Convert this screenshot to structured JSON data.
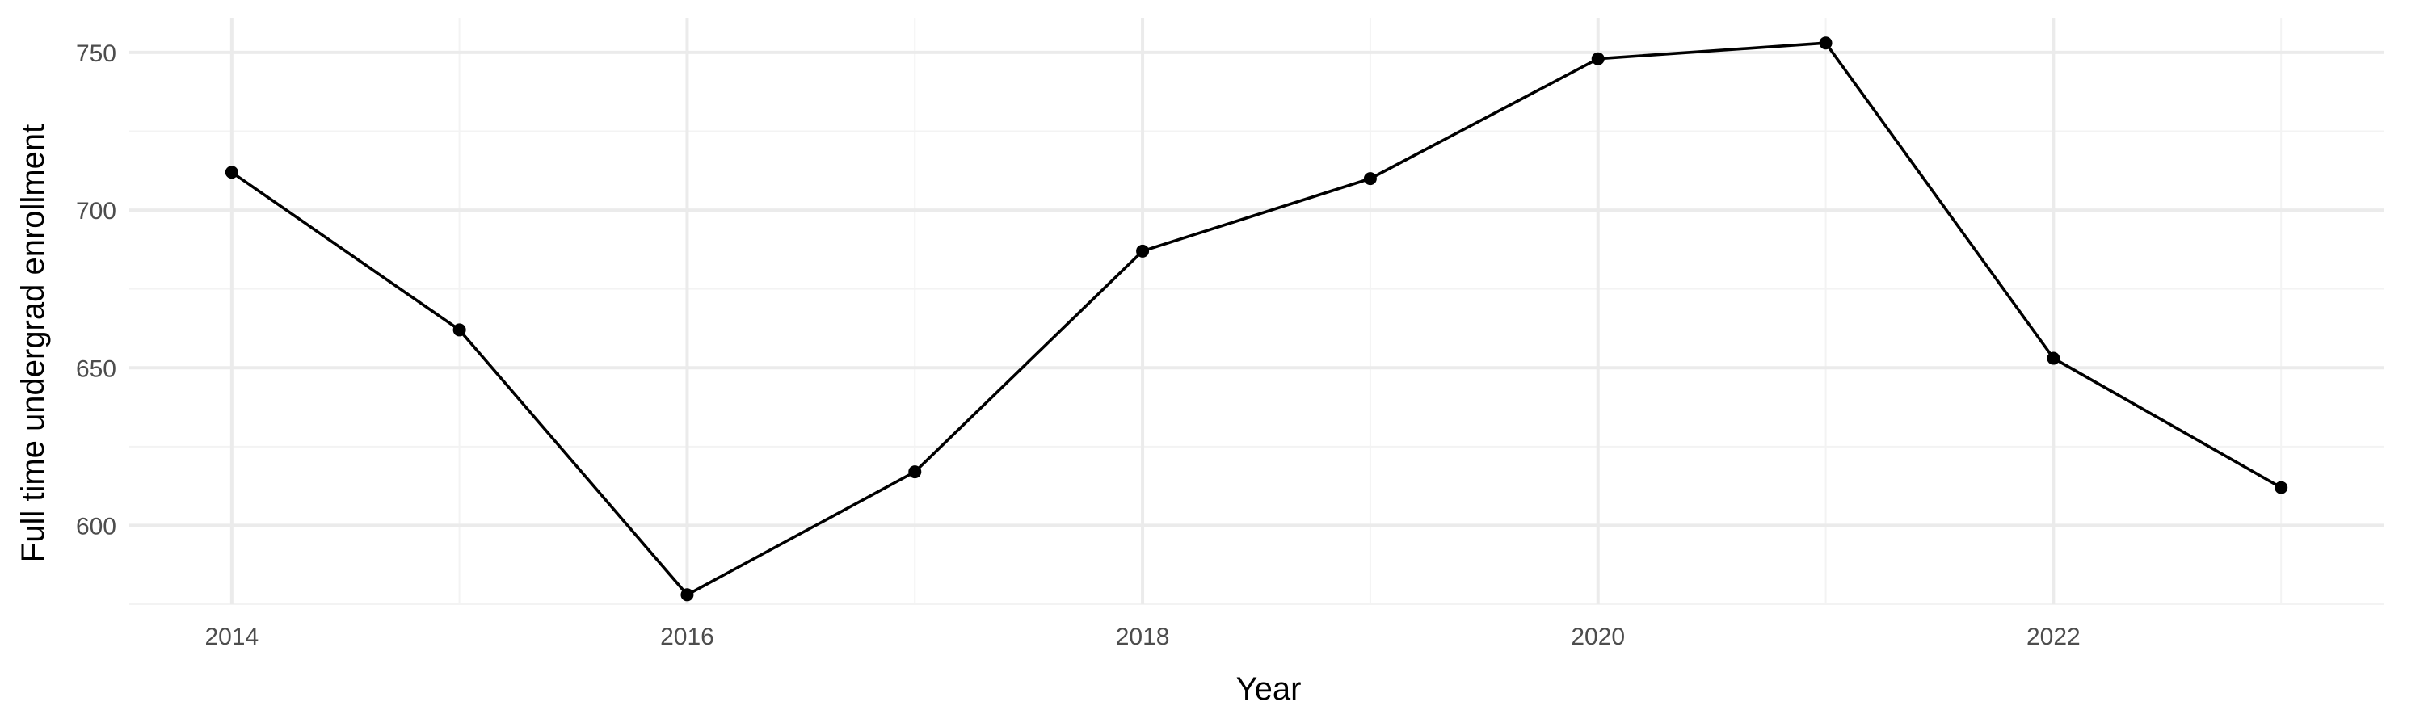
{
  "chart_data": {
    "type": "line",
    "title": "",
    "xlabel": "Year",
    "ylabel": "Full time undergrad enrollment",
    "x": [
      2014,
      2015,
      2016,
      2017,
      2018,
      2019,
      2020,
      2021,
      2022,
      2023
    ],
    "series": [
      {
        "values": [
          712,
          662,
          578,
          617,
          687,
          710,
          748,
          753,
          653,
          612
        ]
      }
    ],
    "xlim": [
      2013.55,
      2023.45
    ],
    "ylim": [
      575,
      761
    ],
    "x_ticks": [
      2014,
      2016,
      2018,
      2020,
      2022
    ],
    "x_minor_ticks": [
      2015,
      2017,
      2019,
      2021,
      2023
    ],
    "y_ticks": [
      600,
      650,
      700,
      750
    ],
    "y_minor_ticks": [
      575,
      625,
      675,
      725
    ],
    "grid": true,
    "legend": "none",
    "colors": {
      "line": "#000000",
      "point": "#000000",
      "grid_major": "#ebebeb",
      "grid_minor": "#f3f3f3",
      "background": "#ffffff"
    }
  }
}
